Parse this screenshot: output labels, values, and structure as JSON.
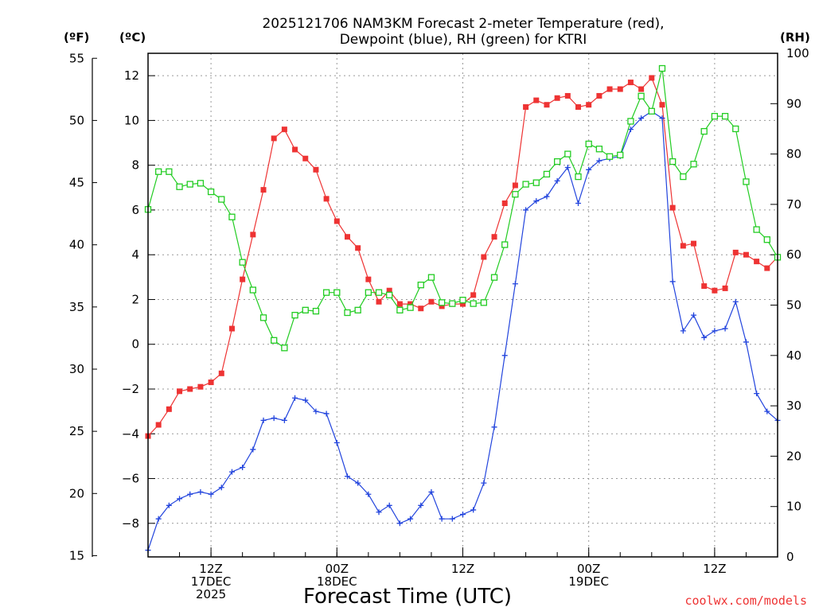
{
  "chart_data": {
    "type": "line",
    "title_lines": [
      "2025121706 NAM3KM Forecast 2-meter Temperature (red),",
      "Dewpoint (blue), RH (green) for KTRI"
    ],
    "xlabel": "Forecast Time (UTC)",
    "credit": "coolwx.com/models",
    "units": {
      "fahrenheit": "(ºF)",
      "celsius": "(ºC)",
      "rh": "(RH)"
    },
    "x_range_hours": [
      0,
      60
    ],
    "celsius_range": [
      -9.5,
      13.0
    ],
    "rh_range": [
      0,
      100
    ],
    "grid": true,
    "x_ticks": [
      {
        "hour": 6,
        "lines": [
          "12Z",
          "17DEC",
          "2025"
        ]
      },
      {
        "hour": 18,
        "lines": [
          "00Z",
          "18DEC"
        ]
      },
      {
        "hour": 30,
        "lines": [
          "12Z"
        ]
      },
      {
        "hour": 42,
        "lines": [
          "00Z",
          "19DEC"
        ]
      },
      {
        "hour": 54,
        "lines": [
          "12Z"
        ]
      }
    ],
    "celsius_ticks": [
      "12",
      "10",
      "8",
      "6",
      "4",
      "2",
      "0",
      "−2",
      "−4",
      "−6",
      "−8"
    ],
    "fahrenheit_ticks": [
      "55",
      "50",
      "45",
      "40",
      "35",
      "30",
      "25",
      "20",
      "15"
    ],
    "rh_ticks": [
      "100",
      "90",
      "80",
      "70",
      "60",
      "50",
      "40",
      "30",
      "20",
      "10",
      "0"
    ],
    "series": [
      {
        "name": "Temperature",
        "color": "#ee3333",
        "marker": "filled-square",
        "values": [
          -4.1,
          -3.6,
          -2.9,
          -2.1,
          -2.0,
          -1.9,
          -1.7,
          -1.3,
          0.7,
          2.9,
          4.9,
          6.9,
          9.2,
          9.6,
          8.7,
          8.3,
          7.8,
          6.5,
          5.5,
          4.8,
          4.3,
          2.9,
          1.9,
          2.4,
          1.8,
          1.8,
          1.6,
          1.9,
          1.7,
          1.8,
          1.8,
          2.2,
          3.9,
          4.8,
          6.3,
          7.1,
          10.6,
          10.9,
          10.7,
          11.0,
          11.1,
          10.6,
          10.7,
          11.1,
          11.4,
          11.4,
          11.7,
          11.4,
          11.9,
          10.7,
          6.1,
          4.4,
          4.5,
          2.6,
          2.4,
          2.5,
          4.1,
          4.0,
          3.7,
          3.4,
          3.9
        ]
      },
      {
        "name": "Dewpoint",
        "color": "#2244dd",
        "marker": "plus",
        "values": [
          -9.2,
          -7.8,
          -7.2,
          -6.9,
          -6.7,
          -6.6,
          -6.7,
          -6.4,
          -5.7,
          -5.5,
          -4.7,
          -3.4,
          -3.3,
          -3.4,
          -2.4,
          -2.5,
          -3.0,
          -3.1,
          -4.4,
          -5.9,
          -6.2,
          -6.7,
          -7.5,
          -7.2,
          -8.0,
          -7.8,
          -7.2,
          -6.6,
          -7.8,
          -7.8,
          -7.6,
          -7.4,
          -6.2,
          -3.7,
          -0.5,
          2.7,
          6.0,
          6.4,
          6.6,
          7.3,
          7.9,
          6.3,
          7.8,
          8.2,
          8.3,
          8.4,
          9.6,
          10.1,
          10.4,
          10.1,
          2.8,
          0.6,
          1.3,
          0.3,
          0.6,
          0.7,
          1.9,
          0.1,
          -2.2,
          -3.0,
          -3.4
        ]
      },
      {
        "name": "RH",
        "color": "#22cc22",
        "marker": "open-square",
        "values": [
          69,
          76.5,
          76.5,
          73.5,
          74,
          74.2,
          72.5,
          71,
          67.5,
          58.5,
          53,
          47.5,
          43,
          41.5,
          48,
          49,
          48.8,
          52.5,
          52.5,
          48.5,
          49,
          52.5,
          52.5,
          52,
          49,
          49.5,
          54,
          55.5,
          50.5,
          50.3,
          51,
          50.3,
          50.5,
          55.5,
          62,
          72,
          74,
          74.3,
          76,
          78.5,
          80,
          75.5,
          82,
          81,
          79.5,
          79.8,
          86.5,
          91.5,
          88.5,
          97,
          78.5,
          75.5,
          78,
          84.5,
          87.5,
          87.5,
          85,
          74.5,
          65,
          63,
          59.5
        ]
      }
    ]
  }
}
